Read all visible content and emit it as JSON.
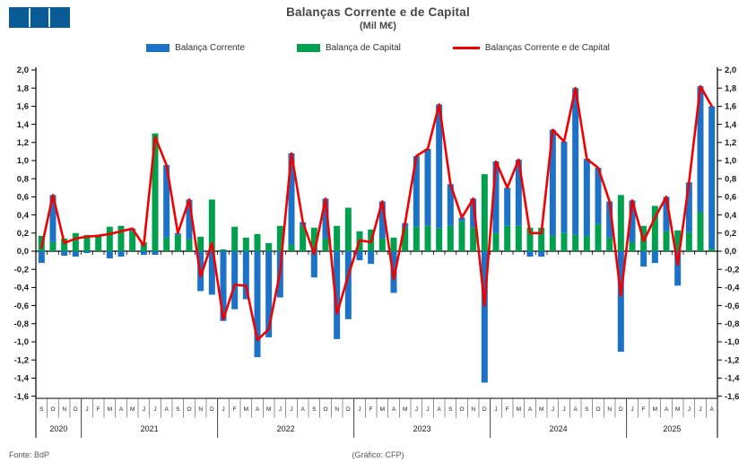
{
  "header": {
    "title": "Balanças Corrente e de Capital",
    "subtitle": "(Mil M€)"
  },
  "logo": {
    "color": "#0a5a96",
    "gap_color": "#d9eef8",
    "segments": 3
  },
  "legend": [
    {
      "label": "Balança Corrente",
      "color": "#1b72c6",
      "type": "box"
    },
    {
      "label": "Balança de Capital",
      "color": "#00a04e",
      "type": "box"
    },
    {
      "label": "Balanças Corrente e de Capital",
      "color": "#f20000",
      "type": "line"
    }
  ],
  "footer": {
    "source": "Fonte: BdP",
    "credit": "(Gráfico: CFP)"
  },
  "chart_data": {
    "type": "bar",
    "subtype": "stacked-bars-with-total-line",
    "title": "Balanças Corrente e de Capital",
    "unit": "Mil M€",
    "ylim": [
      -1.6,
      2.0
    ],
    "ytick_step": 0.2,
    "grid": false,
    "legend_position": "top",
    "axis_sides": [
      "left",
      "right"
    ],
    "years": [
      {
        "label": "2020",
        "months": [
          "S",
          "O",
          "N",
          "D"
        ]
      },
      {
        "label": "2021",
        "months": [
          "J",
          "F",
          "M",
          "A",
          "M",
          "J",
          "J",
          "A",
          "S",
          "O",
          "N",
          "D"
        ]
      },
      {
        "label": "2022",
        "months": [
          "J",
          "F",
          "M",
          "A",
          "M",
          "J",
          "J",
          "A",
          "S",
          "O",
          "N",
          "D"
        ]
      },
      {
        "label": "2023",
        "months": [
          "J",
          "F",
          "M",
          "A",
          "M",
          "J",
          "J",
          "A",
          "S",
          "O",
          "N",
          "D"
        ]
      },
      {
        "label": "2024",
        "months": [
          "J",
          "F",
          "M",
          "A",
          "M",
          "J",
          "J",
          "A",
          "S",
          "O",
          "N",
          "D"
        ]
      },
      {
        "label": "2025",
        "months": [
          "J",
          "F",
          "M",
          "A",
          "M",
          "J",
          "J",
          "A"
        ]
      }
    ],
    "series": [
      {
        "name": "Balança Corrente",
        "color": "#1b72c6",
        "values": [
          -0.13,
          0.52,
          -0.05,
          -0.06,
          -0.02,
          0.0,
          -0.08,
          -0.06,
          0.03,
          -0.04,
          -0.04,
          0.8,
          0.02,
          0.44,
          -0.44,
          -0.48,
          -0.77,
          -0.64,
          -0.53,
          -1.17,
          -0.95,
          -0.51,
          1.01,
          0.04,
          -0.29,
          0.44,
          -0.97,
          -0.75,
          -0.1,
          -0.14,
          0.41,
          -0.46,
          0.05,
          0.78,
          0.85,
          1.37,
          0.46,
          0.04,
          0.32,
          -1.45,
          0.79,
          0.42,
          0.73,
          -0.06,
          -0.06,
          1.17,
          1.01,
          1.62,
          0.85,
          0.62,
          0.4,
          -1.11,
          0.46,
          -0.17,
          -0.13,
          0.38,
          -0.38,
          0.55,
          1.39,
          1.57
        ]
      },
      {
        "name": "Balança de Capital",
        "color": "#00a04e",
        "values": [
          0.17,
          0.1,
          0.14,
          0.2,
          0.18,
          0.17,
          0.27,
          0.28,
          0.22,
          0.1,
          1.3,
          0.15,
          0.18,
          0.13,
          0.16,
          0.57,
          0.02,
          0.27,
          0.15,
          0.19,
          0.09,
          0.28,
          0.07,
          0.28,
          0.26,
          0.14,
          0.28,
          0.48,
          0.22,
          0.24,
          0.14,
          0.15,
          0.26,
          0.27,
          0.28,
          0.25,
          0.28,
          0.33,
          0.26,
          0.85,
          0.2,
          0.28,
          0.28,
          0.26,
          0.26,
          0.17,
          0.2,
          0.18,
          0.17,
          0.3,
          0.15,
          0.62,
          0.1,
          0.28,
          0.5,
          0.22,
          0.23,
          0.21,
          0.43,
          0.03
        ]
      },
      {
        "name": "Balanças Corrente e de Capital",
        "color": "#f20000",
        "derived": "sum of Balança Corrente + Balança de Capital"
      }
    ]
  }
}
